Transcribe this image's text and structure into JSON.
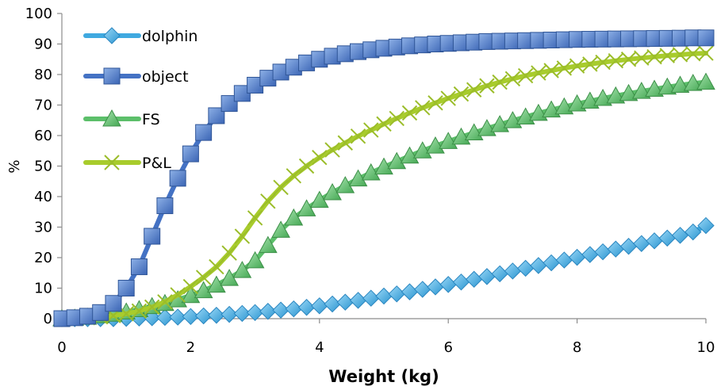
{
  "chart_data": {
    "type": "line",
    "title": "",
    "xlabel": "Weight (kg)",
    "ylabel": "%",
    "xlim": [
      0,
      10
    ],
    "ylim": [
      0,
      100
    ],
    "x_ticks": [
      "0",
      "2",
      "4",
      "6",
      "8",
      "10"
    ],
    "y_ticks": [
      "0",
      "10",
      "20",
      "30",
      "40",
      "50",
      "60",
      "70",
      "80",
      "90",
      "100"
    ],
    "grid": false,
    "legend_position": "top-left",
    "x": [
      0,
      0.2,
      0.4,
      0.6,
      0.8,
      1.0,
      1.2,
      1.4,
      1.6,
      1.8,
      2.0,
      2.2,
      2.4,
      2.6,
      2.8,
      3.0,
      3.2,
      3.4,
      3.6,
      3.8,
      4.0,
      4.2,
      4.4,
      4.6,
      4.8,
      5.0,
      5.2,
      5.4,
      5.6,
      5.8,
      6.0,
      6.2,
      6.4,
      6.6,
      6.8,
      7.0,
      7.2,
      7.4,
      7.6,
      7.8,
      8.0,
      8.2,
      8.4,
      8.6,
      8.8,
      9.0,
      9.2,
      9.4,
      9.6,
      9.8,
      10.0
    ],
    "series": [
      {
        "name": "dolphin",
        "color": "#3fa9e0",
        "marker": "diamond",
        "values": [
          0,
          0,
          0,
          0,
          0,
          0.1,
          0.2,
          0.3,
          0.4,
          0.5,
          0.7,
          0.9,
          1.1,
          1.4,
          1.7,
          2.0,
          2.4,
          2.8,
          3.2,
          3.7,
          4.2,
          4.8,
          5.4,
          6.0,
          6.7,
          7.4,
          8.1,
          8.8,
          9.6,
          10.4,
          11.2,
          12.0,
          12.9,
          13.8,
          14.7,
          15.6,
          16.5,
          17.4,
          18.3,
          19.2,
          20.1,
          21.0,
          21.9,
          22.8,
          23.7,
          24.6,
          25.5,
          26.4,
          27.3,
          28.4,
          30.5
        ]
      },
      {
        "name": "object",
        "color": "#4472c4",
        "marker": "square",
        "values": [
          0,
          0.3,
          0.8,
          2.0,
          5.0,
          10.0,
          17.0,
          27.0,
          37.0,
          46.0,
          54.0,
          61.0,
          66.5,
          70.5,
          73.8,
          76.5,
          78.8,
          80.8,
          82.4,
          83.8,
          85.0,
          86.0,
          86.8,
          87.5,
          88.1,
          88.6,
          89.0,
          89.4,
          89.7,
          90.0,
          90.2,
          90.4,
          90.6,
          90.8,
          90.9,
          91.0,
          91.1,
          91.2,
          91.3,
          91.4,
          91.5,
          91.55,
          91.6,
          91.65,
          91.7,
          91.75,
          91.8,
          91.85,
          91.9,
          92.0,
          92.0
        ]
      },
      {
        "name": "FS",
        "color": "#5cbf6a",
        "marker": "triangle",
        "values": [
          0,
          0.2,
          0.5,
          1.0,
          1.5,
          2.2,
          3.0,
          4.0,
          5.0,
          6.2,
          7.6,
          9.2,
          11.0,
          13.2,
          15.8,
          19.0,
          24.0,
          29.0,
          33.0,
          36.0,
          38.8,
          41.3,
          43.6,
          45.8,
          47.8,
          49.7,
          51.5,
          53.3,
          55.0,
          56.6,
          58.1,
          59.5,
          60.9,
          62.3,
          63.6,
          64.9,
          66.1,
          67.3,
          68.4,
          69.4,
          70.4,
          71.3,
          72.2,
          73.0,
          73.8,
          74.5,
          75.2,
          75.9,
          76.5,
          77.1,
          77.5
        ]
      },
      {
        "name": "P&L",
        "color": "#a8cc2c",
        "marker": "x",
        "values": [
          0,
          0.1,
          0.3,
          0.6,
          1.0,
          1.6,
          2.5,
          3.8,
          5.5,
          7.8,
          10.5,
          13.5,
          17.0,
          21.5,
          27.0,
          33.0,
          38.5,
          43.0,
          46.8,
          50.0,
          52.8,
          55.3,
          57.6,
          59.8,
          61.8,
          63.8,
          65.6,
          67.4,
          69.1,
          70.7,
          72.2,
          73.6,
          75.0,
          76.3,
          77.5,
          78.6,
          79.6,
          80.5,
          81.3,
          82.1,
          82.8,
          83.4,
          84.0,
          84.5,
          85.0,
          85.4,
          85.8,
          86.2,
          86.5,
          86.8,
          87.0
        ]
      }
    ]
  }
}
